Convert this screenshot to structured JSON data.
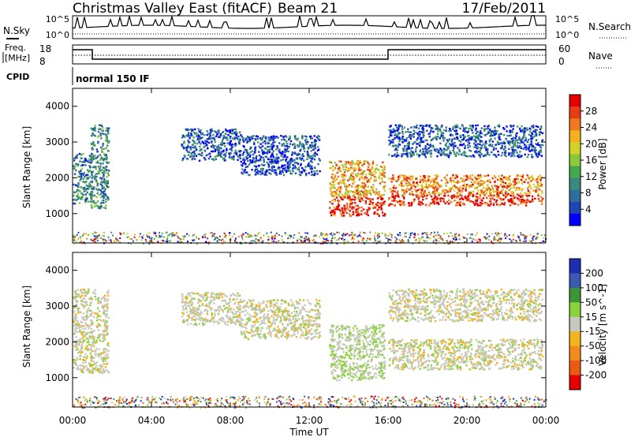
{
  "header": {
    "station": "Christmas Valley East (fitACF)",
    "beam": "Beam 21",
    "date": "17/Feb/2011"
  },
  "noise_panel": {
    "left_label": "N.Sky",
    "right_label": "N.Search",
    "tick_top": "10^5",
    "tick_bottom": "10^0"
  },
  "freq_panel": {
    "label_line1": "Freq.",
    "label_line2": "[MHz]",
    "left_ticks": [
      "18",
      "8"
    ],
    "right_label": "Nave",
    "right_ticks": [
      "60",
      "0"
    ]
  },
  "cpid": {
    "label": "CPID",
    "value": "normal 150 IF"
  },
  "axes": {
    "xlabel": "Time UT",
    "xticks": [
      "00:00",
      "04:00",
      "08:00",
      "12:00",
      "16:00",
      "20:00",
      "00:00"
    ],
    "ylabel": "Slant Range [km]",
    "yticks": [
      "1000",
      "2000",
      "3000",
      "4000"
    ]
  },
  "colors": {
    "ground_scatter": "#c8c8be"
  },
  "chart_data": [
    {
      "type": "heatmap",
      "title": "",
      "quantity": "Power",
      "colorbar_label": "Power [dB]",
      "colorbar_ticks": [
        "4",
        "8",
        "12",
        "16",
        "20",
        "24",
        "28"
      ],
      "colorbar_colors": [
        "#0000ff",
        "#1e46b4",
        "#2e6e9a",
        "#3c8a7a",
        "#45a84e",
        "#8cc83c",
        "#d2d228",
        "#f5b01e",
        "#f0781e",
        "#e83c14",
        "#e60000"
      ],
      "vlim": [
        0,
        32
      ],
      "xlim_hours": [
        0,
        24
      ],
      "ylim_km": [
        180,
        4500
      ],
      "regions": [
        {
          "t": [
            0.0,
            1.0
          ],
          "r": [
            1300,
            2700
          ],
          "value": 9
        },
        {
          "t": [
            0.9,
            1.8
          ],
          "r": [
            1150,
            3500
          ],
          "value": 10
        },
        {
          "t": [
            5.5,
            8.5
          ],
          "r": [
            2500,
            3400
          ],
          "value": 6
        },
        {
          "t": [
            8.5,
            12.5
          ],
          "r": [
            2100,
            3200
          ],
          "value": 5
        },
        {
          "t": [
            13.0,
            15.8
          ],
          "r": [
            950,
            2500
          ],
          "value": 22
        },
        {
          "t": [
            16.0,
            23.8
          ],
          "r": [
            1250,
            2100
          ],
          "value": 24
        },
        {
          "t": [
            16.0,
            23.8
          ],
          "r": [
            2600,
            3500
          ],
          "value": 6
        }
      ]
    },
    {
      "type": "heatmap",
      "title": "",
      "quantity": "Velocity",
      "colorbar_label": "Velocity [m s^-1]",
      "colorbar_ticks": [
        "200",
        "100",
        "50",
        "15",
        "-15",
        "-50",
        "-100",
        "-200"
      ],
      "colorbar_colors": [
        "#1c2fb0",
        "#3c5ab4",
        "#3c9636",
        "#8cd23c",
        "#c8c8be",
        "#f5b41e",
        "#f08c1e",
        "#eb5a14",
        "#e60000"
      ],
      "vlim": [
        -250,
        250
      ],
      "xlim_hours": [
        0,
        24
      ],
      "ylim_km": [
        180,
        4500
      ],
      "regions": [
        {
          "t": [
            0.0,
            1.8
          ],
          "r": [
            1150,
            3500
          ],
          "value": 0
        },
        {
          "t": [
            5.5,
            8.5
          ],
          "r": [
            2500,
            3400
          ],
          "value": 0
        },
        {
          "t": [
            8.5,
            12.5
          ],
          "r": [
            2100,
            3200
          ],
          "value": 0
        },
        {
          "t": [
            13.0,
            15.8
          ],
          "r": [
            950,
            2500
          ],
          "value": 25
        },
        {
          "t": [
            16.0,
            23.8
          ],
          "r": [
            1250,
            2100
          ],
          "value": 0
        },
        {
          "t": [
            16.0,
            23.8
          ],
          "r": [
            2600,
            3500
          ],
          "value": 0
        }
      ]
    }
  ]
}
